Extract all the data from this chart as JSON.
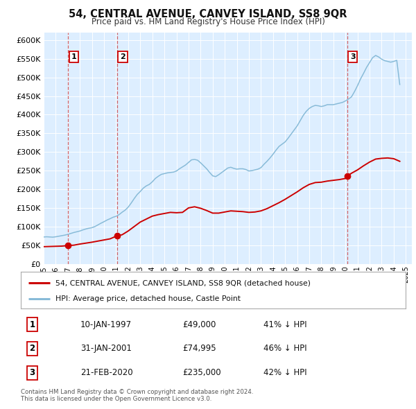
{
  "title": "54, CENTRAL AVENUE, CANVEY ISLAND, SS8 9QR",
  "subtitle": "Price paid vs. HM Land Registry's House Price Index (HPI)",
  "ylim": [
    0,
    620000
  ],
  "yticks": [
    0,
    50000,
    100000,
    150000,
    200000,
    250000,
    300000,
    350000,
    400000,
    450000,
    500000,
    550000,
    600000
  ],
  "xlim_start": 1995.0,
  "xlim_end": 2025.5,
  "bg_color": "#ddeeff",
  "grid_color": "#ffffff",
  "sale_dates": [
    1997.03,
    2001.08,
    2020.13
  ],
  "sale_prices": [
    49000,
    74995,
    235000
  ],
  "sale_labels": [
    "1",
    "2",
    "3"
  ],
  "hpi_line_color": "#88bbd8",
  "sale_line_color": "#cc0000",
  "sale_dot_color": "#cc0000",
  "legend_label_red": "54, CENTRAL AVENUE, CANVEY ISLAND, SS8 9QR (detached house)",
  "legend_label_blue": "HPI: Average price, detached house, Castle Point",
  "table_rows": [
    [
      "1",
      "10-JAN-1997",
      "£49,000",
      "41% ↓ HPI"
    ],
    [
      "2",
      "31-JAN-2001",
      "£74,995",
      "46% ↓ HPI"
    ],
    [
      "3",
      "21-FEB-2020",
      "£235,000",
      "42% ↓ HPI"
    ]
  ],
  "footnote": "Contains HM Land Registry data © Crown copyright and database right 2024.\nThis data is licensed under the Open Government Licence v3.0.",
  "hpi_data": [
    [
      1995.0,
      72000
    ],
    [
      1995.25,
      72500
    ],
    [
      1995.5,
      72000
    ],
    [
      1995.75,
      71500
    ],
    [
      1996.0,
      72500
    ],
    [
      1996.25,
      74000
    ],
    [
      1996.5,
      75500
    ],
    [
      1996.75,
      77000
    ],
    [
      1997.0,
      79000
    ],
    [
      1997.25,
      81500
    ],
    [
      1997.5,
      84000
    ],
    [
      1997.75,
      86000
    ],
    [
      1998.0,
      88000
    ],
    [
      1998.25,
      91000
    ],
    [
      1998.5,
      93500
    ],
    [
      1998.75,
      95500
    ],
    [
      1999.0,
      97000
    ],
    [
      1999.25,
      100000
    ],
    [
      1999.5,
      104500
    ],
    [
      1999.75,
      109000
    ],
    [
      2000.0,
      113000
    ],
    [
      2000.25,
      117500
    ],
    [
      2000.5,
      121000
    ],
    [
      2000.75,
      125000
    ],
    [
      2001.0,
      127500
    ],
    [
      2001.25,
      132000
    ],
    [
      2001.5,
      138500
    ],
    [
      2001.75,
      144000
    ],
    [
      2002.0,
      152000
    ],
    [
      2002.25,
      163000
    ],
    [
      2002.5,
      175000
    ],
    [
      2002.75,
      186000
    ],
    [
      2003.0,
      194000
    ],
    [
      2003.25,
      203000
    ],
    [
      2003.5,
      209000
    ],
    [
      2003.75,
      213000
    ],
    [
      2004.0,
      220000
    ],
    [
      2004.25,
      229000
    ],
    [
      2004.5,
      235000
    ],
    [
      2004.75,
      240000
    ],
    [
      2005.0,
      242000
    ],
    [
      2005.25,
      244000
    ],
    [
      2005.5,
      245000
    ],
    [
      2005.75,
      246000
    ],
    [
      2006.0,
      249000
    ],
    [
      2006.25,
      255000
    ],
    [
      2006.5,
      260000
    ],
    [
      2006.75,
      265000
    ],
    [
      2007.0,
      272000
    ],
    [
      2007.25,
      279000
    ],
    [
      2007.5,
      280000
    ],
    [
      2007.75,
      278000
    ],
    [
      2008.0,
      271000
    ],
    [
      2008.25,
      263000
    ],
    [
      2008.5,
      255000
    ],
    [
      2008.75,
      245000
    ],
    [
      2009.0,
      236000
    ],
    [
      2009.25,
      234000
    ],
    [
      2009.5,
      239000
    ],
    [
      2009.75,
      245000
    ],
    [
      2010.0,
      251000
    ],
    [
      2010.25,
      257000
    ],
    [
      2010.5,
      259000
    ],
    [
      2010.75,
      256000
    ],
    [
      2011.0,
      254000
    ],
    [
      2011.25,
      255000
    ],
    [
      2011.5,
      255000
    ],
    [
      2011.75,
      253000
    ],
    [
      2012.0,
      249000
    ],
    [
      2012.25,
      250000
    ],
    [
      2012.5,
      252000
    ],
    [
      2012.75,
      254000
    ],
    [
      2013.0,
      258000
    ],
    [
      2013.25,
      267000
    ],
    [
      2013.5,
      275000
    ],
    [
      2013.75,
      284000
    ],
    [
      2014.0,
      294000
    ],
    [
      2014.25,
      305000
    ],
    [
      2014.5,
      315000
    ],
    [
      2014.75,
      321000
    ],
    [
      2015.0,
      327000
    ],
    [
      2015.25,
      337000
    ],
    [
      2015.5,
      348000
    ],
    [
      2015.75,
      359000
    ],
    [
      2016.0,
      370000
    ],
    [
      2016.25,
      384000
    ],
    [
      2016.5,
      398000
    ],
    [
      2016.75,
      409000
    ],
    [
      2017.0,
      417000
    ],
    [
      2017.25,
      422000
    ],
    [
      2017.5,
      425000
    ],
    [
      2017.75,
      424000
    ],
    [
      2018.0,
      422000
    ],
    [
      2018.25,
      424000
    ],
    [
      2018.5,
      427000
    ],
    [
      2018.75,
      427000
    ],
    [
      2019.0,
      427000
    ],
    [
      2019.25,
      429000
    ],
    [
      2019.5,
      431000
    ],
    [
      2019.75,
      433000
    ],
    [
      2020.0,
      437000
    ],
    [
      2020.25,
      442000
    ],
    [
      2020.5,
      448000
    ],
    [
      2020.75,
      462000
    ],
    [
      2021.0,
      478000
    ],
    [
      2021.25,
      496000
    ],
    [
      2021.5,
      511000
    ],
    [
      2021.75,
      527000
    ],
    [
      2022.0,
      540000
    ],
    [
      2022.25,
      553000
    ],
    [
      2022.5,
      559000
    ],
    [
      2022.75,
      555000
    ],
    [
      2023.0,
      549000
    ],
    [
      2023.25,
      545000
    ],
    [
      2023.5,
      543000
    ],
    [
      2023.75,
      541000
    ],
    [
      2024.0,
      543000
    ],
    [
      2024.25,
      546000
    ],
    [
      2024.5,
      481000
    ]
  ],
  "price_paid_data": [
    [
      1995.0,
      46000
    ],
    [
      1995.5,
      46500
    ],
    [
      1996.0,
      47000
    ],
    [
      1996.5,
      47500
    ],
    [
      1997.03,
      49000
    ],
    [
      1997.5,
      50000
    ],
    [
      1998.0,
      53000
    ],
    [
      1998.5,
      55500
    ],
    [
      1999.0,
      58000
    ],
    [
      1999.5,
      61000
    ],
    [
      2000.0,
      64000
    ],
    [
      2000.5,
      67000
    ],
    [
      2001.08,
      74995
    ],
    [
      2001.5,
      78000
    ],
    [
      2002.0,
      88000
    ],
    [
      2002.5,
      100000
    ],
    [
      2003.0,
      112000
    ],
    [
      2003.5,
      120000
    ],
    [
      2004.0,
      128000
    ],
    [
      2004.5,
      132000
    ],
    [
      2005.0,
      135000
    ],
    [
      2005.5,
      138000
    ],
    [
      2006.0,
      137000
    ],
    [
      2006.5,
      138000
    ],
    [
      2007.0,
      150000
    ],
    [
      2007.5,
      153000
    ],
    [
      2008.0,
      149000
    ],
    [
      2008.5,
      143000
    ],
    [
      2009.0,
      136000
    ],
    [
      2009.5,
      136000
    ],
    [
      2010.0,
      139000
    ],
    [
      2010.5,
      142000
    ],
    [
      2011.0,
      141000
    ],
    [
      2011.5,
      140000
    ],
    [
      2012.0,
      138000
    ],
    [
      2012.5,
      139000
    ],
    [
      2013.0,
      142000
    ],
    [
      2013.5,
      148000
    ],
    [
      2014.0,
      156000
    ],
    [
      2014.5,
      164000
    ],
    [
      2015.0,
      173000
    ],
    [
      2015.5,
      183000
    ],
    [
      2016.0,
      193000
    ],
    [
      2016.5,
      204000
    ],
    [
      2017.0,
      213000
    ],
    [
      2017.5,
      218000
    ],
    [
      2018.0,
      219000
    ],
    [
      2018.5,
      222000
    ],
    [
      2019.0,
      224000
    ],
    [
      2019.5,
      226000
    ],
    [
      2020.0,
      229000
    ],
    [
      2020.13,
      235000
    ],
    [
      2020.5,
      243000
    ],
    [
      2021.0,
      252000
    ],
    [
      2021.5,
      263000
    ],
    [
      2022.0,
      273000
    ],
    [
      2022.5,
      281000
    ],
    [
      2023.0,
      283000
    ],
    [
      2023.5,
      284000
    ],
    [
      2024.0,
      282000
    ],
    [
      2024.5,
      275000
    ]
  ]
}
